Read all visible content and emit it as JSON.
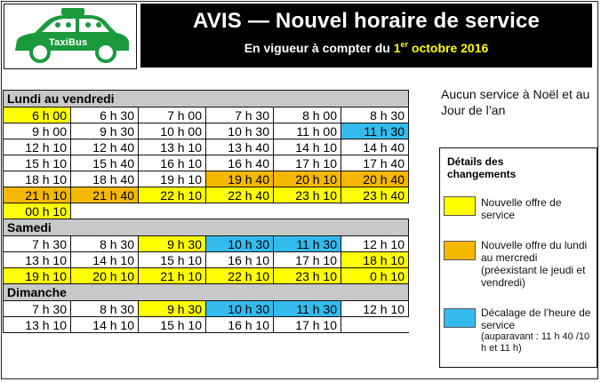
{
  "logo": {
    "text": "TaxiBus",
    "color": "#1a9a3c"
  },
  "header": {
    "title": "AVIS — Nouvel horaire de service",
    "subtitle_pre": "En vigueur à compter du ",
    "subtitle_day": "1",
    "subtitle_sup": "er",
    "subtitle_post": " octobre 2016"
  },
  "note": "Aucun service à Noël et au Jour de l’an",
  "legend": {
    "title_line1": "Détails des",
    "title_line2": "changements",
    "items": [
      {
        "color": "#ffff00",
        "text": "Nouvelle offre de service"
      },
      {
        "color": "#f5b800",
        "text": "Nouvelle offre du lundi au mercredi",
        "detail": "(préexistant le jeudi et vendredi)"
      },
      {
        "color": "#33bbee",
        "text": "Décalage de l’heure de service",
        "detail": "(auparavant : 11 h 40 /10 h et 11 h)"
      }
    ]
  },
  "schedule": [
    {
      "section": "Lundi au vendredi",
      "rows": [
        [
          [
            "6 h 00",
            "y"
          ],
          [
            "6 h 30",
            ""
          ],
          [
            "7 h 00",
            ""
          ],
          [
            "7 h 30",
            ""
          ],
          [
            "8 h 00",
            ""
          ],
          [
            "8 h 30",
            ""
          ]
        ],
        [
          [
            "9 h 00",
            ""
          ],
          [
            "9 h 30",
            ""
          ],
          [
            "10 h 00",
            ""
          ],
          [
            "10 h 30",
            ""
          ],
          [
            "11 h 00",
            ""
          ],
          [
            "11 h 30",
            "b"
          ]
        ],
        [
          [
            "12 h 10",
            ""
          ],
          [
            "12 h 40",
            ""
          ],
          [
            "13 h 10",
            ""
          ],
          [
            "13 h 40",
            ""
          ],
          [
            "14 h 10",
            ""
          ],
          [
            "14 h 40",
            ""
          ]
        ],
        [
          [
            "15 h 10",
            ""
          ],
          [
            "15 h 40",
            ""
          ],
          [
            "16 h 10",
            ""
          ],
          [
            "16 h 40",
            ""
          ],
          [
            "17 h 10",
            ""
          ],
          [
            "17 h 40",
            ""
          ]
        ],
        [
          [
            "18 h 10",
            ""
          ],
          [
            "18 h 40",
            ""
          ],
          [
            "19 h 10",
            ""
          ],
          [
            "19 h 40",
            "o"
          ],
          [
            "20 h 10",
            "o"
          ],
          [
            "20 h 40",
            "o"
          ]
        ],
        [
          [
            "21 h 10",
            "o"
          ],
          [
            "21 h 40",
            "o"
          ],
          [
            "22 h 10",
            "y"
          ],
          [
            "22 h 40",
            "y"
          ],
          [
            "23 h 10",
            "y"
          ],
          [
            "23 h 40",
            "y"
          ]
        ],
        [
          [
            "00 h 10",
            "y"
          ]
        ]
      ]
    },
    {
      "section": "Samedi",
      "rows": [
        [
          [
            "7 h 30",
            ""
          ],
          [
            "8 h 30",
            ""
          ],
          [
            "9 h 30",
            "y"
          ],
          [
            "10 h 30",
            "b"
          ],
          [
            "11 h 30",
            "b"
          ],
          [
            "12 h 10",
            ""
          ]
        ],
        [
          [
            "13 h 10",
            ""
          ],
          [
            "14 h 10",
            ""
          ],
          [
            "15 h 10",
            ""
          ],
          [
            "16 h 10",
            ""
          ],
          [
            "17 h 10",
            ""
          ],
          [
            "18 h 10",
            "y"
          ]
        ],
        [
          [
            "19 h 10",
            "y"
          ],
          [
            "20 h 10",
            "y"
          ],
          [
            "21 h 10",
            "y"
          ],
          [
            "22 h 10",
            "y"
          ],
          [
            "23 h 10",
            "y"
          ],
          [
            "0 h 10",
            "y"
          ]
        ]
      ]
    },
    {
      "section": "Dimanche",
      "rows": [
        [
          [
            "7 h 30",
            ""
          ],
          [
            "8 h 30",
            ""
          ],
          [
            "9 h 30",
            "y"
          ],
          [
            "10 h 30",
            "b"
          ],
          [
            "11 h 30",
            "b"
          ],
          [
            "12 h 10",
            ""
          ]
        ],
        [
          [
            "13 h 10",
            ""
          ],
          [
            "14 h 10",
            ""
          ],
          [
            "15 h 10",
            ""
          ],
          [
            "16 h 10",
            ""
          ],
          [
            "17 h 10",
            ""
          ]
        ]
      ]
    }
  ]
}
